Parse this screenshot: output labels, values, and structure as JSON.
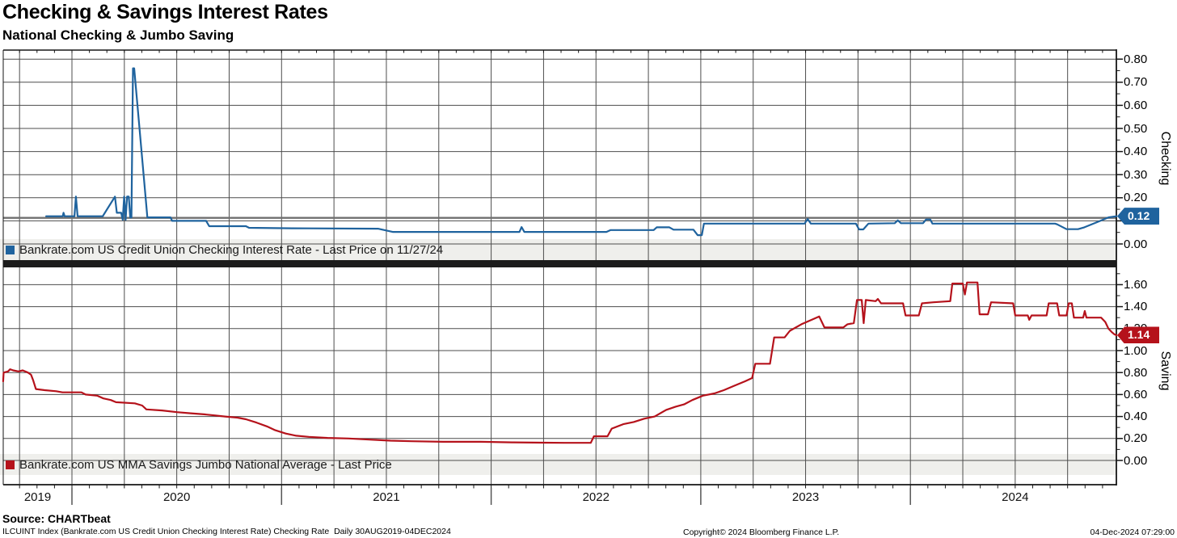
{
  "title": "Checking & Savings Interest Rates",
  "subtitle": "National Checking & Jumbo Saving",
  "colors": {
    "grid": "#4d4d4d",
    "axis": "#161616",
    "legend_strip": "#efefec",
    "last_price_line": "#6f6f6f",
    "divider": "#1c1c1c",
    "checking": "#1f639e",
    "saving": "#b5121b"
  },
  "x_axis": {
    "years": [
      "2019",
      "2020",
      "2021",
      "2022",
      "2023",
      "2024"
    ]
  },
  "panels": [
    {
      "axis_title": "Checking",
      "legend": "Bankrate.com US Credit Union Checking Interest Rate - Last Price on 11/27/24",
      "last_price_label": "0.12",
      "last_price_value": 0.12,
      "tick_labels": [
        "0.00",
        "0.10",
        "0.20",
        "0.30",
        "0.40",
        "0.50",
        "0.60",
        "0.70",
        "0.80"
      ]
    },
    {
      "axis_title": "Saving",
      "legend": "Bankrate.com US MMA Savings Jumbo National Average - Last Price",
      "last_price_label": "1.14",
      "last_price_value": 1.14,
      "tick_labels": [
        "0.00",
        "0.20",
        "0.40",
        "0.60",
        "0.80",
        "1.00",
        "1.20",
        "1.40",
        "1.60"
      ]
    }
  ],
  "footer": {
    "source": "Source: CHARTbeat",
    "description": "ILCUINT Index (Bankrate.com US Credit Union Checking Interest Rate) Checking Rate  Daily 30AUG2019-04DEC2024",
    "copyright": "Copyright© 2024 Bloomberg Finance L.P.",
    "timestamp": "04-Dec-2024 07:29:00"
  },
  "chart_data": [
    {
      "type": "line",
      "title": "Checking",
      "ylabel": "Checking",
      "ylim": [
        0,
        0.84
      ],
      "tick_step": 0.1,
      "grid_max": 0.8,
      "x_range": [
        2019.65,
        2024.99
      ],
      "legend_position": "bottom-strip",
      "grid": true,
      "series": [
        {
          "name": "Bankrate.com US Credit Union Checking Interest Rate",
          "color": "#1f639e",
          "last_price": 0.12,
          "points": [
            [
              2019.877,
              0.12
            ],
            [
              2019.956,
              0.12
            ],
            [
              2019.96,
              0.135
            ],
            [
              2019.965,
              0.12
            ],
            [
              2020.012,
              0.12
            ],
            [
              2020.019,
              0.205
            ],
            [
              2020.027,
              0.12
            ],
            [
              2020.147,
              0.12
            ],
            [
              2020.205,
              0.205
            ],
            [
              2020.214,
              0.135
            ],
            [
              2020.235,
              0.135
            ],
            [
              2020.242,
              0.105
            ],
            [
              2020.249,
              0.205
            ],
            [
              2020.256,
              0.105
            ],
            [
              2020.263,
              0.205
            ],
            [
              2020.271,
              0.205
            ],
            [
              2020.278,
              0.115
            ],
            [
              2020.284,
              0.115
            ],
            [
              2020.291,
              0.76
            ],
            [
              2020.297,
              0.76
            ],
            [
              2020.36,
              0.115
            ],
            [
              2020.47,
              0.115
            ],
            [
              2020.478,
              0.1
            ],
            [
              2020.64,
              0.1
            ],
            [
              2020.655,
              0.077
            ],
            [
              2020.83,
              0.077
            ],
            [
              2020.845,
              0.07
            ],
            [
              2021.05,
              0.068
            ],
            [
              2021.46,
              0.066
            ],
            [
              2021.53,
              0.052
            ],
            [
              2022.135,
              0.052
            ],
            [
              2022.145,
              0.073
            ],
            [
              2022.158,
              0.052
            ],
            [
              2022.55,
              0.052
            ],
            [
              2022.57,
              0.06
            ],
            [
              2022.775,
              0.06
            ],
            [
              2022.79,
              0.072
            ],
            [
              2022.85,
              0.072
            ],
            [
              2022.87,
              0.062
            ],
            [
              2022.965,
              0.062
            ],
            [
              2022.985,
              0.038
            ],
            [
              2023.005,
              0.038
            ],
            [
              2023.015,
              0.088
            ],
            [
              2023.495,
              0.088
            ],
            [
              2023.51,
              0.108
            ],
            [
              2023.525,
              0.088
            ],
            [
              2023.74,
              0.088
            ],
            [
              2023.755,
              0.063
            ],
            [
              2023.775,
              0.063
            ],
            [
              2023.8,
              0.088
            ],
            [
              2023.925,
              0.09
            ],
            [
              2023.94,
              0.102
            ],
            [
              2023.955,
              0.09
            ],
            [
              2024.06,
              0.09
            ],
            [
              2024.075,
              0.106
            ],
            [
              2024.095,
              0.106
            ],
            [
              2024.105,
              0.088
            ],
            [
              2024.69,
              0.088
            ],
            [
              2024.7,
              0.085
            ],
            [
              2024.745,
              0.064
            ],
            [
              2024.8,
              0.064
            ],
            [
              2024.83,
              0.072
            ],
            [
              2024.9,
              0.098
            ],
            [
              2024.945,
              0.115
            ],
            [
              2024.983,
              0.12
            ]
          ]
        }
      ]
    },
    {
      "type": "line",
      "title": "Saving",
      "ylabel": "Saving",
      "ylim": [
        0,
        1.76
      ],
      "tick_step": 0.2,
      "grid_max": 1.6,
      "x_range": [
        2019.65,
        2024.99
      ],
      "legend_position": "bottom-strip",
      "grid": true,
      "series": [
        {
          "name": "Bankrate.com US MMA Savings Jumbo National Average",
          "color": "#b5121b",
          "last_price": 1.14,
          "points": [
            [
              2019.672,
              0.72
            ],
            [
              2019.674,
              0.8
            ],
            [
              2019.695,
              0.81
            ],
            [
              2019.705,
              0.83
            ],
            [
              2019.72,
              0.82
            ],
            [
              2019.745,
              0.81
            ],
            [
              2019.765,
              0.82
            ],
            [
              2019.79,
              0.8
            ],
            [
              2019.805,
              0.78
            ],
            [
              2019.815,
              0.73
            ],
            [
              2019.828,
              0.65
            ],
            [
              2019.87,
              0.64
            ],
            [
              2019.925,
              0.63
            ],
            [
              2019.955,
              0.62
            ],
            [
              2020.045,
              0.62
            ],
            [
              2020.065,
              0.6
            ],
            [
              2020.12,
              0.59
            ],
            [
              2020.15,
              0.565
            ],
            [
              2020.185,
              0.55
            ],
            [
              2020.21,
              0.53
            ],
            [
              2020.3,
              0.52
            ],
            [
              2020.335,
              0.5
            ],
            [
              2020.355,
              0.465
            ],
            [
              2020.43,
              0.455
            ],
            [
              2020.5,
              0.44
            ],
            [
              2020.56,
              0.43
            ],
            [
              2020.63,
              0.42
            ],
            [
              2020.68,
              0.41
            ],
            [
              2020.73,
              0.4
            ],
            [
              2020.79,
              0.39
            ],
            [
              2020.83,
              0.375
            ],
            [
              2020.88,
              0.345
            ],
            [
              2020.93,
              0.31
            ],
            [
              2020.97,
              0.275
            ],
            [
              2021.02,
              0.245
            ],
            [
              2021.07,
              0.225
            ],
            [
              2021.13,
              0.215
            ],
            [
              2021.22,
              0.205
            ],
            [
              2021.32,
              0.2
            ],
            [
              2021.42,
              0.19
            ],
            [
              2021.52,
              0.18
            ],
            [
              2021.62,
              0.175
            ],
            [
              2021.77,
              0.17
            ],
            [
              2021.95,
              0.17
            ],
            [
              2022.1,
              0.165
            ],
            [
              2022.25,
              0.162
            ],
            [
              2022.35,
              0.16
            ],
            [
              2022.475,
              0.16
            ],
            [
              2022.49,
              0.22
            ],
            [
              2022.555,
              0.22
            ],
            [
              2022.575,
              0.29
            ],
            [
              2022.63,
              0.33
            ],
            [
              2022.68,
              0.35
            ],
            [
              2022.73,
              0.38
            ],
            [
              2022.78,
              0.4
            ],
            [
              2022.835,
              0.46
            ],
            [
              2022.88,
              0.49
            ],
            [
              2022.92,
              0.51
            ],
            [
              2022.96,
              0.55
            ],
            [
              2023.01,
              0.59
            ],
            [
              2023.065,
              0.61
            ],
            [
              2023.11,
              0.64
            ],
            [
              2023.16,
              0.68
            ],
            [
              2023.21,
              0.72
            ],
            [
              2023.245,
              0.75
            ],
            [
              2023.26,
              0.88
            ],
            [
              2023.33,
              0.88
            ],
            [
              2023.35,
              1.12
            ],
            [
              2023.4,
              1.12
            ],
            [
              2023.425,
              1.18
            ],
            [
              2023.48,
              1.24
            ],
            [
              2023.54,
              1.29
            ],
            [
              2023.565,
              1.31
            ],
            [
              2023.59,
              1.21
            ],
            [
              2023.68,
              1.21
            ],
            [
              2023.7,
              1.24
            ],
            [
              2023.73,
              1.25
            ],
            [
              2023.745,
              1.46
            ],
            [
              2023.768,
              1.46
            ],
            [
              2023.777,
              1.25
            ],
            [
              2023.787,
              1.46
            ],
            [
              2023.834,
              1.45
            ],
            [
              2023.845,
              1.47
            ],
            [
              2023.86,
              1.43
            ],
            [
              2023.965,
              1.43
            ],
            [
              2023.977,
              1.32
            ],
            [
              2024.04,
              1.32
            ],
            [
              2024.055,
              1.43
            ],
            [
              2024.11,
              1.44
            ],
            [
              2024.19,
              1.45
            ],
            [
              2024.2,
              1.61
            ],
            [
              2024.25,
              1.61
            ],
            [
              2024.26,
              1.51
            ],
            [
              2024.27,
              1.62
            ],
            [
              2024.32,
              1.62
            ],
            [
              2024.33,
              1.33
            ],
            [
              2024.37,
              1.33
            ],
            [
              2024.385,
              1.44
            ],
            [
              2024.49,
              1.43
            ],
            [
              2024.5,
              1.32
            ],
            [
              2024.56,
              1.32
            ],
            [
              2024.567,
              1.28
            ],
            [
              2024.578,
              1.32
            ],
            [
              2024.65,
              1.32
            ],
            [
              2024.66,
              1.43
            ],
            [
              2024.7,
              1.43
            ],
            [
              2024.71,
              1.32
            ],
            [
              2024.745,
              1.32
            ],
            [
              2024.755,
              1.43
            ],
            [
              2024.77,
              1.43
            ],
            [
              2024.78,
              1.3
            ],
            [
              2024.824,
              1.3
            ],
            [
              2024.832,
              1.36
            ],
            [
              2024.84,
              1.3
            ],
            [
              2024.91,
              1.3
            ],
            [
              2024.93,
              1.26
            ],
            [
              2024.945,
              1.2
            ],
            [
              2024.96,
              1.17
            ],
            [
              2024.972,
              1.15
            ],
            [
              2024.983,
              1.14
            ]
          ]
        }
      ]
    }
  ]
}
